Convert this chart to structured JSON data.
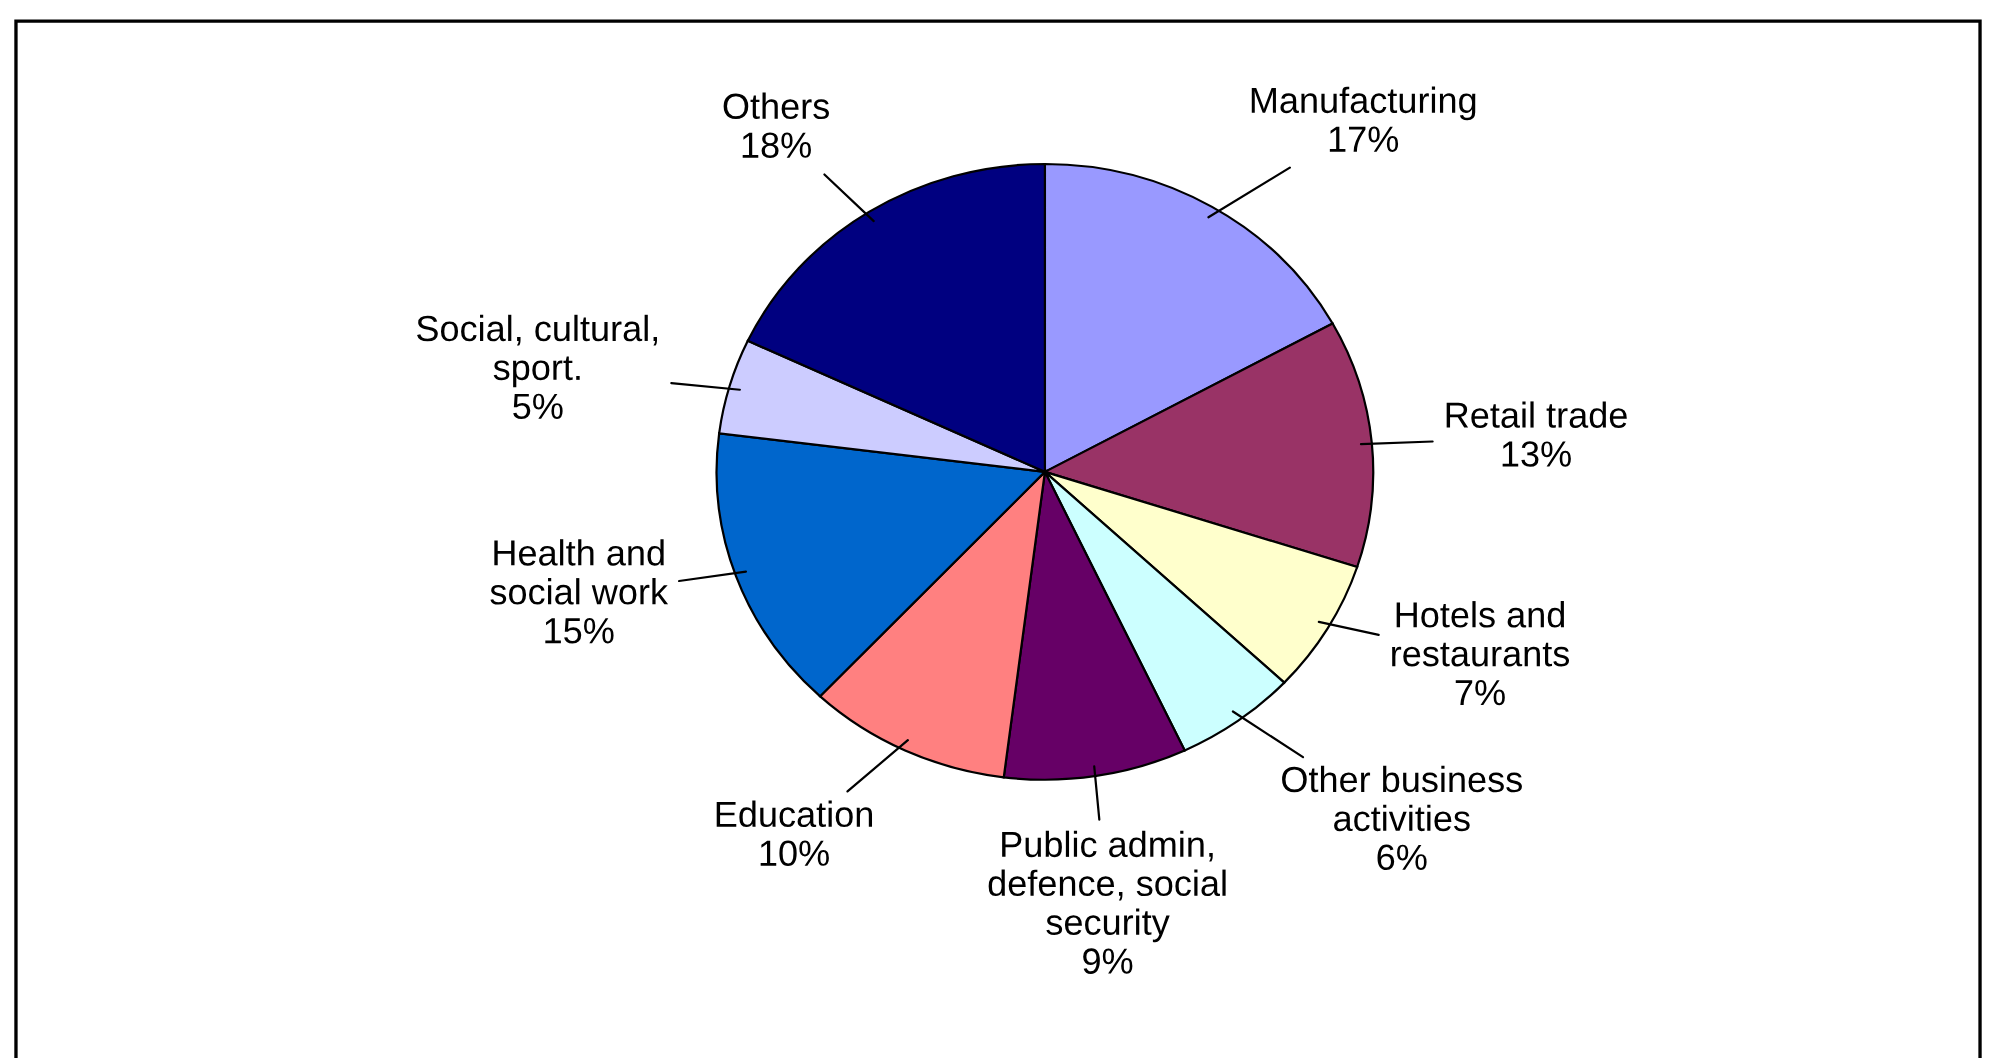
{
  "chart_data": {
    "type": "pie",
    "categories": [
      "Manufacturing",
      "Retail trade",
      "Hotels and\nrestaurants",
      "Other business\nactivities",
      "Public admin,\ndefence, social\nsecurity",
      "Education",
      "Health and\nsocial work",
      "Social, cultural,\nsport.",
      "Others"
    ],
    "values": [
      17,
      13,
      7,
      6,
      9,
      10,
      15,
      5,
      18
    ],
    "value_labels": [
      "17%",
      "13%",
      "7%",
      "6%",
      "9%",
      "10%",
      "15%",
      "5%",
      "18%"
    ],
    "colors": [
      "#9999ff",
      "#993366",
      "#ffffcc",
      "#ccffff",
      "#660066",
      "#ff8080",
      "#0066cc",
      "#ccccff",
      "#000080"
    ],
    "legend": false
  }
}
